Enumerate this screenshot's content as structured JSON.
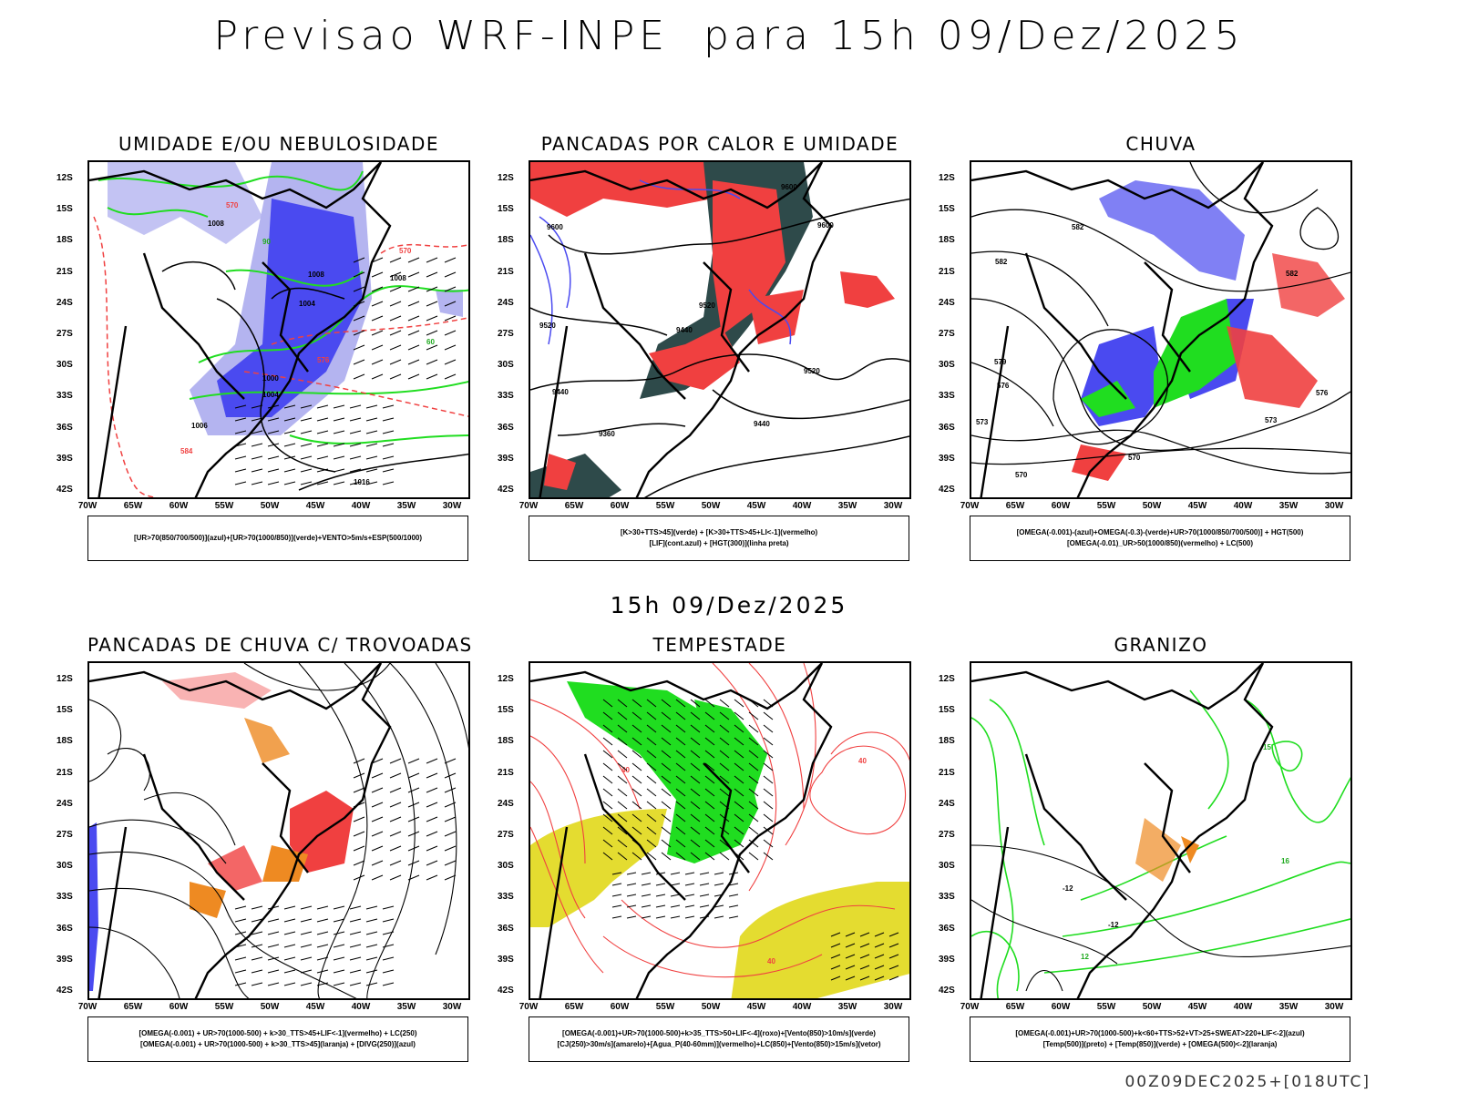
{
  "title": "Previsao WRF-INPE  para 15h 09/Dez/2025",
  "center_date": "15h 09/Dez/2025",
  "run_stamp": "00Z09DEC2025+[018UTC]",
  "lat_labels": [
    "12S",
    "15S",
    "18S",
    "21S",
    "24S",
    "27S",
    "30S",
    "33S",
    "36S",
    "39S",
    "42S"
  ],
  "lon_labels": [
    "70W",
    "65W",
    "60W",
    "55W",
    "50W",
    "45W",
    "40W",
    "35W",
    "30W"
  ],
  "colors": {
    "blue": "#4a4af0",
    "lightblue": "#b4b4f0",
    "green": "#20dd20",
    "red": "#f04040",
    "darkteal": "#2e4a4a",
    "orange": "#ee8a22",
    "yellow": "#e4dc30"
  },
  "panels": [
    {
      "id": "umidade",
      "title": "UMIDADE E/OU NEBULOSIDADE",
      "legend": [
        "[UR>70(850/700/500)](azul)+[UR>70(1000/850)](verde)+VENTO>5m/s+ESP(500/1000)"
      ],
      "contour_labels": [
        "1008",
        "1008",
        "1008",
        "1004",
        "1000",
        "1004",
        "1006",
        "570",
        "570",
        "576",
        "584",
        "1016",
        "60",
        "90"
      ]
    },
    {
      "id": "pancadas",
      "title": "PANCADAS POR CALOR E UMIDADE",
      "legend": [
        "[K>30+TTS>45](verde) + [K>30+TTS>45+LI<-1](vermelho)",
        "[LIF](cont.azul) + [HGT(300)](linha preta)"
      ],
      "contour_labels": [
        "9600",
        "9600",
        "9600",
        "9520",
        "9520",
        "9440",
        "9520",
        "9440",
        "9440",
        "9360"
      ]
    },
    {
      "id": "chuva",
      "title": "CHUVA",
      "legend": [
        "[OMEGA(-0.001)-(azul)+OMEGA(-0.3)-(verde)+UR>70(1000/850/700/500)] + HGT(500)",
        "[OMEGA(-0.01)_UR>50(1000/850)(vermelho) + LC(500)"
      ],
      "contour_labels": [
        "582",
        "582",
        "579",
        "576",
        "573",
        "570",
        "570",
        "576",
        "573",
        "582"
      ]
    },
    {
      "id": "trovoadas",
      "title": "PANCADAS DE CHUVA C/ TROVOADAS",
      "legend": [
        "[OMEGA(-0.001) + UR>70(1000-500) + k>30_TTS>45+LIF<-1](vermelho) + LC(250)",
        "[OMEGA(-0.001) + UR>70(1000-500) + k>30_TTS>45](laranja) + [DIVG(250)](azul)"
      ],
      "contour_labels": []
    },
    {
      "id": "tempestade",
      "title": "TEMPESTADE",
      "legend": [
        "[OMEGA(-0.001)+UR>70(1000-500)+k>35_TTS>50+LIF<-4](roxo)+[Vento(850)>10m/s](verde)",
        "[CJ(250)>30m/s](amarelo)+[Agua_P(40-60mm)](vermelho)+LC(850)+[Vento(850)>15m/s](vetor)"
      ],
      "contour_labels": [
        "40",
        "40",
        "40"
      ]
    },
    {
      "id": "granizo",
      "title": "GRANIZO",
      "legend": [
        "[OMEGA(-0.001)+UR>70(1000-500)+k<60+TTS>52+VT>25+SWEAT>220+LIF<-2](azul)",
        "[Temp(500)](preto) + [Temp(850)](verde) + [OMEGA(500)<-2](laranja)"
      ],
      "contour_labels": [
        "-12",
        "-12",
        "12",
        "15",
        "16"
      ]
    }
  ]
}
